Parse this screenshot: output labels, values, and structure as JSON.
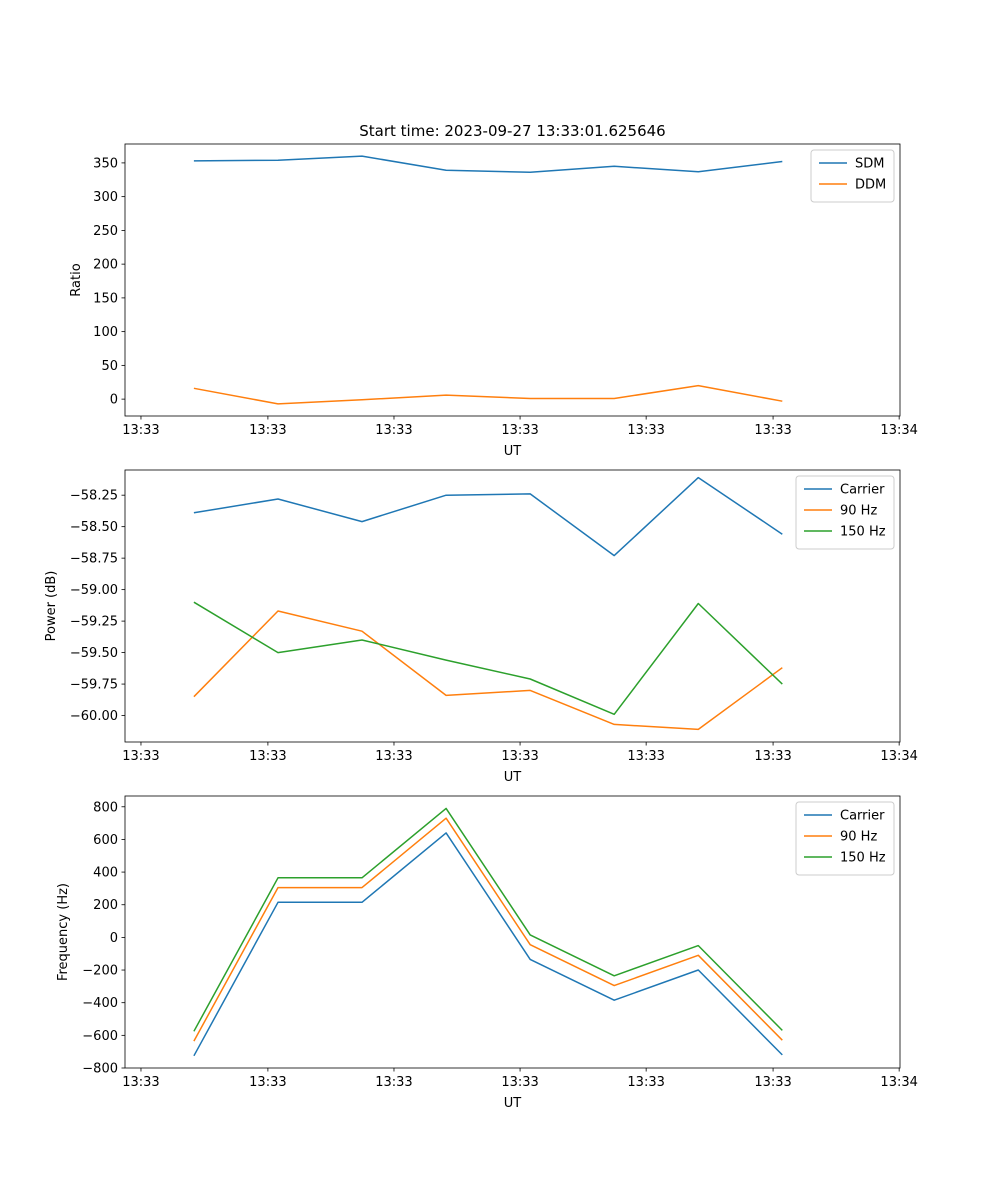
{
  "figure_title": "Start time: 2023-09-27 13:33:01.625646",
  "chart_data": [
    {
      "type": "line",
      "title": "Start time: 2023-09-27 13:33:01.625646",
      "xlabel": "UT",
      "ylabel": "Ratio",
      "x_tick_labels": [
        "13:33",
        "13:33",
        "13:33",
        "13:33",
        "13:33",
        "13:33",
        "13:34"
      ],
      "x": [
        1,
        2,
        3,
        4,
        5,
        6,
        7,
        8
      ],
      "xlim": [
        0.18,
        9.4
      ],
      "x_ticks": [
        0.37,
        1.88,
        3.38,
        4.88,
        6.38,
        7.89,
        9.39
      ],
      "ylim": [
        -25,
        378
      ],
      "y_ticks": [
        0,
        50,
        100,
        150,
        200,
        250,
        300,
        350
      ],
      "y_tick_labels": [
        "0",
        "50",
        "100",
        "150",
        "200",
        "250",
        "300",
        "350"
      ],
      "legend_position": "top-right",
      "series": [
        {
          "name": "SDM",
          "color": "#1f77b4",
          "values": [
            353,
            354,
            360,
            339,
            336,
            345,
            337,
            352
          ]
        },
        {
          "name": "DDM",
          "color": "#ff7f0e",
          "values": [
            16,
            -7,
            -1,
            6,
            1,
            1,
            20,
            -3
          ]
        }
      ]
    },
    {
      "type": "line",
      "title": "",
      "xlabel": "UT",
      "ylabel": "Power (dB)",
      "x_tick_labels": [
        "13:33",
        "13:33",
        "13:33",
        "13:33",
        "13:33",
        "13:33",
        "13:34"
      ],
      "x": [
        1,
        2,
        3,
        4,
        5,
        6,
        7,
        8
      ],
      "xlim": [
        0.18,
        9.4
      ],
      "x_ticks": [
        0.37,
        1.88,
        3.38,
        4.88,
        6.38,
        7.89,
        9.39
      ],
      "ylim": [
        -60.21,
        -58.05
      ],
      "y_ticks": [
        -60.0,
        -59.75,
        -59.5,
        -59.25,
        -59.0,
        -58.75,
        -58.5,
        -58.25
      ],
      "y_tick_labels": [
        "−60.00",
        "−59.75",
        "−59.50",
        "−59.25",
        "−59.00",
        "−58.75",
        "−58.50",
        "−58.25"
      ],
      "legend_position": "top-right",
      "series": [
        {
          "name": "Carrier",
          "color": "#1f77b4",
          "values": [
            -58.39,
            -58.28,
            -58.46,
            -58.25,
            -58.24,
            -58.73,
            -58.11,
            -58.56
          ]
        },
        {
          "name": "90 Hz",
          "color": "#ff7f0e",
          "values": [
            -59.85,
            -59.17,
            -59.33,
            -59.84,
            -59.8,
            -60.07,
            -60.11,
            -59.62
          ]
        },
        {
          "name": "150 Hz",
          "color": "#2ca02c",
          "values": [
            -59.1,
            -59.5,
            -59.4,
            -59.56,
            -59.71,
            -59.99,
            -59.11,
            -59.75
          ]
        }
      ]
    },
    {
      "type": "line",
      "title": "",
      "xlabel": "UT",
      "ylabel": "Frequency (Hz)",
      "x_tick_labels": [
        "13:33",
        "13:33",
        "13:33",
        "13:33",
        "13:33",
        "13:33",
        "13:34"
      ],
      "x": [
        1,
        2,
        3,
        4,
        5,
        6,
        7,
        8
      ],
      "xlim": [
        0.18,
        9.4
      ],
      "x_ticks": [
        0.37,
        1.88,
        3.38,
        4.88,
        6.38,
        7.89,
        9.39
      ],
      "ylim": [
        -800,
        866
      ],
      "y_ticks": [
        -800,
        -600,
        -400,
        -200,
        0,
        200,
        400,
        600,
        800
      ],
      "y_tick_labels": [
        "−800",
        "−600",
        "−400",
        "−200",
        "0",
        "200",
        "400",
        "600",
        "800"
      ],
      "legend_position": "top-right",
      "series": [
        {
          "name": "Carrier",
          "color": "#1f77b4",
          "values": [
            -725,
            215,
            215,
            640,
            -135,
            -385,
            -200,
            -720
          ]
        },
        {
          "name": "90 Hz",
          "color": "#ff7f0e",
          "values": [
            -635,
            305,
            305,
            730,
            -45,
            -295,
            -110,
            -630
          ]
        },
        {
          "name": "150 Hz",
          "color": "#2ca02c",
          "values": [
            -575,
            365,
            365,
            790,
            15,
            -235,
            -50,
            -570
          ]
        }
      ]
    }
  ]
}
